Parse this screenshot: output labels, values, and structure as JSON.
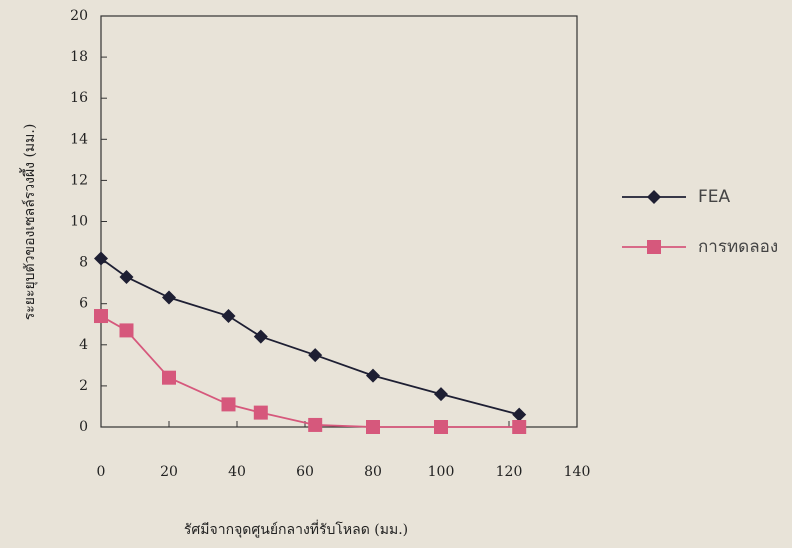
{
  "chart_data": {
    "type": "line",
    "x_label": "รัศมีจากจุดศูนย์กลางที่รับโหลด (มม.)",
    "y_label": "ระยะยุบตัวของเซลล์รวงผึ้ง (มม.)",
    "x": [
      0,
      7.5,
      20,
      37.5,
      47,
      63,
      80,
      100,
      123
    ],
    "series": [
      {
        "name": "FEA",
        "color": "#1e1f33",
        "marker": "diamond",
        "values": [
          8.2,
          7.3,
          6.3,
          5.4,
          4.4,
          3.5,
          2.5,
          1.6,
          0.6
        ]
      },
      {
        "name": "การทดลอง",
        "color": "#d6587c",
        "marker": "square",
        "values": [
          5.4,
          4.7,
          2.4,
          1.1,
          0.7,
          0.1,
          0,
          0,
          0
        ]
      }
    ],
    "xlim": [
      0,
      140
    ],
    "xticks": [
      0,
      20,
      40,
      60,
      80,
      100,
      120,
      140
    ],
    "ylim": [
      0,
      20
    ],
    "yticks": [
      0,
      2,
      4,
      6,
      8,
      10,
      12,
      14,
      16,
      18,
      20
    ],
    "legend": "right",
    "grid": false
  }
}
